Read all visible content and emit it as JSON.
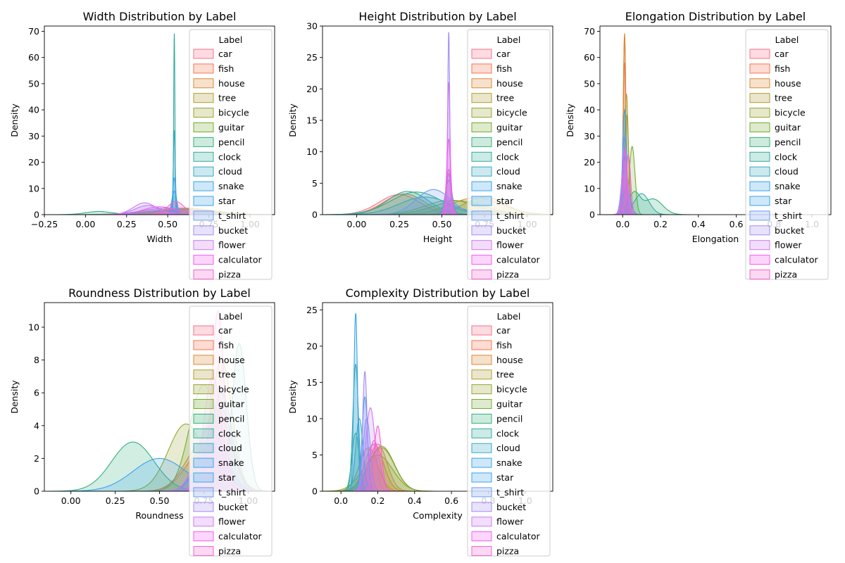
{
  "palette": {
    "car": "#f77189",
    "fish": "#f7754f",
    "house": "#dc8932",
    "tree": "#ae9d31",
    "bicycle": "#97a431",
    "guitar": "#77ab31",
    "pencil": "#33b07a",
    "clock": "#35ac9c",
    "cloud": "#38a9c5",
    "snake": "#3ba3ec",
    "star": "#3ba3ec",
    "t_shirt": "#6e9bf4",
    "bucket": "#a48cf4",
    "flower": "#cc7af4",
    "calculator": "#f45cf2",
    "pizza": "#f565cc"
  },
  "chart_data": [
    {
      "type": "area",
      "title": "Width Distribution by Label",
      "xlabel": "Width",
      "ylabel": "Density",
      "xlim": [
        -0.25,
        1.15
      ],
      "ylim": [
        0,
        72
      ],
      "xticks": [
        -0.25,
        0.0,
        0.25,
        0.5,
        0.75,
        1.0
      ],
      "xtick_labels": [
        "−0.25",
        "0.00",
        "0.25",
        "0.50",
        "0.75",
        "1.00"
      ],
      "yticks": [
        0,
        10,
        20,
        30,
        40,
        50,
        60,
        70
      ],
      "legend": {
        "title": "Label",
        "placement": "top-right"
      },
      "series": [
        {
          "name": "car",
          "peaks": [
            [
              0.62,
              0.16,
              2.2
            ]
          ]
        },
        {
          "name": "fish",
          "peaks": [
            [
              0.6,
              0.18,
              2.5
            ]
          ]
        },
        {
          "name": "house",
          "peaks": [
            [
              0.65,
              0.15,
              2.0
            ]
          ]
        },
        {
          "name": "tree",
          "peaks": [
            [
              0.6,
              0.15,
              2.2
            ]
          ]
        },
        {
          "name": "bicycle",
          "peaks": [
            [
              0.65,
              0.15,
              2.0
            ]
          ]
        },
        {
          "name": "guitar",
          "peaks": [
            [
              0.55,
              0.2,
              1.8
            ]
          ]
        },
        {
          "name": "pencil",
          "peaks": [
            [
              0.08,
              0.08,
              1.2
            ],
            [
              0.5,
              0.12,
              1.5
            ]
          ]
        },
        {
          "name": "clock",
          "peaks": [
            [
              0.54,
              0.004,
              69
            ]
          ]
        },
        {
          "name": "cloud",
          "peaks": [
            [
              0.54,
              0.006,
              32
            ]
          ]
        },
        {
          "name": "snake",
          "peaks": [
            [
              0.54,
              0.01,
              14
            ]
          ]
        },
        {
          "name": "star",
          "peaks": [
            [
              0.54,
              0.015,
              9
            ]
          ]
        },
        {
          "name": "t_shirt",
          "peaks": [
            [
              0.5,
              0.15,
              2.5
            ]
          ]
        },
        {
          "name": "bucket",
          "peaks": [
            [
              0.38,
              0.08,
              3.5
            ]
          ]
        },
        {
          "name": "flower",
          "peaks": [
            [
              0.36,
              0.07,
              4.5
            ]
          ]
        },
        {
          "name": "calculator",
          "peaks": [
            [
              0.45,
              0.1,
              3.0
            ]
          ]
        },
        {
          "name": "pizza",
          "peaks": [
            [
              0.55,
              0.05,
              5.0
            ]
          ]
        }
      ]
    },
    {
      "type": "area",
      "title": "Height Distribution by Label",
      "xlabel": "Height",
      "ylabel": "Density",
      "xlim": [
        -0.2,
        1.15
      ],
      "ylim": [
        0,
        30
      ],
      "xticks": [
        0.0,
        0.25,
        0.5,
        0.75,
        1.0
      ],
      "xtick_labels": [
        "0.00",
        "0.25",
        "0.50",
        "0.75",
        "1.00"
      ],
      "yticks": [
        0,
        5,
        10,
        15,
        20,
        25,
        30
      ],
      "legend": {
        "title": "Label",
        "placement": "top-right"
      },
      "series": [
        {
          "name": "car",
          "peaks": [
            [
              0.25,
              0.12,
              3.2
            ]
          ]
        },
        {
          "name": "fish",
          "peaks": [
            [
              0.28,
              0.12,
              3.3
            ]
          ]
        },
        {
          "name": "house",
          "peaks": [
            [
              0.7,
              0.15,
              2.7
            ]
          ]
        },
        {
          "name": "tree",
          "peaks": [
            [
              0.75,
              0.12,
              2.8
            ]
          ]
        },
        {
          "name": "bicycle",
          "peaks": [
            [
              0.55,
              0.15,
              2.3
            ]
          ]
        },
        {
          "name": "guitar",
          "peaks": [
            [
              0.6,
              0.15,
              2.2
            ]
          ]
        },
        {
          "name": "pencil",
          "peaks": [
            [
              0.35,
              0.15,
              3.6
            ]
          ]
        },
        {
          "name": "clock",
          "peaks": [
            [
              0.3,
              0.12,
              3.7
            ]
          ]
        },
        {
          "name": "cloud",
          "peaks": [
            [
              0.4,
              0.15,
              2.8
            ]
          ]
        },
        {
          "name": "snake",
          "peaks": [
            [
              0.54,
              0.015,
              6.5
            ]
          ]
        },
        {
          "name": "star",
          "peaks": [
            [
              0.54,
              0.02,
              5.5
            ]
          ]
        },
        {
          "name": "t_shirt",
          "peaks": [
            [
              0.45,
              0.1,
              4.0
            ]
          ]
        },
        {
          "name": "bucket",
          "peaks": [
            [
              0.54,
              0.006,
              29
            ]
          ]
        },
        {
          "name": "flower",
          "peaks": [
            [
              0.54,
              0.008,
              21
            ]
          ]
        },
        {
          "name": "calculator",
          "peaks": [
            [
              0.54,
              0.012,
              12
            ]
          ]
        },
        {
          "name": "pizza",
          "peaks": [
            [
              0.54,
              0.015,
              7.2
            ]
          ]
        }
      ]
    },
    {
      "type": "area",
      "title": "Elongation Distribution by Label",
      "xlabel": "Elongation",
      "ylabel": "Density",
      "xlim": [
        -0.12,
        1.1
      ],
      "ylim": [
        0,
        72
      ],
      "xticks": [
        0.0,
        0.2,
        0.4,
        0.6,
        0.8,
        1.0
      ],
      "xtick_labels": [
        "0.0",
        "0.2",
        "0.4",
        "0.6",
        "0.8",
        "1.0"
      ],
      "yticks": [
        0,
        10,
        20,
        30,
        40,
        50,
        60,
        70
      ],
      "legend": {
        "title": "Label",
        "placement": "top-right"
      },
      "series": [
        {
          "name": "car",
          "peaks": [
            [
              0.01,
              0.008,
              58
            ]
          ]
        },
        {
          "name": "fish",
          "peaks": [
            [
              0.01,
              0.007,
              68
            ]
          ]
        },
        {
          "name": "house",
          "peaks": [
            [
              0.01,
              0.007,
              69
            ]
          ]
        },
        {
          "name": "tree",
          "peaks": [
            [
              0.02,
              0.01,
              46
            ]
          ]
        },
        {
          "name": "bicycle",
          "peaks": [
            [
              0.02,
              0.012,
              38
            ]
          ]
        },
        {
          "name": "guitar",
          "peaks": [
            [
              0.05,
              0.015,
              26
            ]
          ]
        },
        {
          "name": "pencil",
          "peaks": [
            [
              0.06,
              0.03,
              8
            ],
            [
              0.16,
              0.05,
              6
            ]
          ]
        },
        {
          "name": "clock",
          "peaks": [
            [
              0.1,
              0.04,
              8
            ]
          ]
        },
        {
          "name": "cloud",
          "peaks": [
            [
              0.02,
              0.02,
              10
            ]
          ]
        },
        {
          "name": "snake",
          "peaks": [
            [
              0.01,
              0.01,
              40
            ]
          ]
        },
        {
          "name": "star",
          "peaks": [
            [
              0.01,
              0.015,
              22
            ]
          ]
        },
        {
          "name": "t_shirt",
          "peaks": [
            [
              0.01,
              0.012,
              30
            ]
          ]
        },
        {
          "name": "bucket",
          "peaks": [
            [
              0.01,
              0.015,
              20
            ]
          ]
        },
        {
          "name": "flower",
          "peaks": [
            [
              0.015,
              0.015,
              18
            ]
          ]
        },
        {
          "name": "calculator",
          "peaks": [
            [
              0.01,
              0.01,
              25
            ]
          ]
        },
        {
          "name": "pizza",
          "peaks": [
            [
              0.03,
              0.012,
              23
            ]
          ]
        }
      ]
    },
    {
      "type": "area",
      "title": "Roundness Distribution by Label",
      "xlabel": "Roundness",
      "ylabel": "Density",
      "xlim": [
        -0.15,
        1.15
      ],
      "ylim": [
        0,
        11.5
      ],
      "xticks": [
        0.0,
        0.25,
        0.5,
        0.75,
        1.0
      ],
      "xtick_labels": [
        "0.00",
        "0.25",
        "0.50",
        "0.75",
        "1.00"
      ],
      "yticks": [
        0,
        2,
        4,
        6,
        8,
        10
      ],
      "legend": {
        "title": "Label",
        "placement": "top-right"
      },
      "series": [
        {
          "name": "car",
          "peaks": [
            [
              0.75,
              0.1,
              2.5
            ]
          ]
        },
        {
          "name": "fish",
          "peaks": [
            [
              0.75,
              0.1,
              3.0
            ]
          ]
        },
        {
          "name": "house",
          "peaks": [
            [
              0.82,
              0.08,
              5.0
            ]
          ]
        },
        {
          "name": "tree",
          "peaks": [
            [
              0.85,
              0.06,
              8.0
            ]
          ]
        },
        {
          "name": "bicycle",
          "peaks": [
            [
              0.65,
              0.1,
              4.1
            ]
          ]
        },
        {
          "name": "guitar",
          "peaks": [
            [
              0.75,
              0.08,
              6.5
            ]
          ]
        },
        {
          "name": "pencil",
          "peaks": [
            [
              0.35,
              0.12,
              3.0
            ]
          ]
        },
        {
          "name": "clock",
          "peaks": [
            [
              0.95,
              0.04,
              9.0
            ]
          ]
        },
        {
          "name": "cloud",
          "peaks": [
            [
              0.85,
              0.06,
              6.0
            ]
          ]
        },
        {
          "name": "snake",
          "peaks": [
            [
              0.5,
              0.15,
              2.0
            ]
          ]
        },
        {
          "name": "star",
          "peaks": [
            [
              0.8,
              0.08,
              3.0
            ]
          ]
        },
        {
          "name": "t_shirt",
          "peaks": [
            [
              0.8,
              0.08,
              3.5
            ]
          ]
        },
        {
          "name": "bucket",
          "peaks": [
            [
              0.85,
              0.06,
              5.0
            ]
          ]
        },
        {
          "name": "flower",
          "peaks": [
            [
              0.78,
              0.07,
              4.0
            ]
          ]
        },
        {
          "name": "calculator",
          "peaks": [
            [
              0.8,
              0.05,
              7.0
            ]
          ]
        },
        {
          "name": "pizza",
          "peaks": [
            [
              0.83,
              0.035,
              11.0
            ]
          ]
        }
      ]
    },
    {
      "type": "area",
      "title": "Complexity Distribution by Label",
      "xlabel": "Complexity",
      "ylabel": "Density",
      "xlim": [
        -0.1,
        1.15
      ],
      "ylim": [
        0,
        26
      ],
      "xticks": [
        0.0,
        0.2,
        0.4,
        0.6,
        0.8,
        1.0
      ],
      "xtick_labels": [
        "0.0",
        "0.2",
        "0.4",
        "0.6",
        "0.8",
        "1.0"
      ],
      "yticks": [
        0,
        5,
        10,
        15,
        20,
        25
      ],
      "legend": {
        "title": "Label",
        "placement": "top-right"
      },
      "series": [
        {
          "name": "car",
          "peaks": [
            [
              0.2,
              0.05,
              6.5
            ]
          ]
        },
        {
          "name": "fish",
          "peaks": [
            [
              0.18,
              0.05,
              6.5
            ]
          ]
        },
        {
          "name": "house",
          "peaks": [
            [
              0.15,
              0.05,
              6.0
            ]
          ]
        },
        {
          "name": "tree",
          "peaks": [
            [
              0.22,
              0.07,
              6.0
            ]
          ]
        },
        {
          "name": "bicycle",
          "peaks": [
            [
              0.2,
              0.08,
              5.0
            ]
          ]
        },
        {
          "name": "guitar",
          "peaks": [
            [
              0.22,
              0.07,
              6.2
            ]
          ]
        },
        {
          "name": "pencil",
          "peaks": [
            [
              0.08,
              0.02,
              8.0
            ]
          ]
        },
        {
          "name": "clock",
          "peaks": [
            [
              0.08,
              0.015,
              17.5
            ]
          ]
        },
        {
          "name": "cloud",
          "peaks": [
            [
              0.1,
              0.02,
              10.0
            ]
          ]
        },
        {
          "name": "snake",
          "peaks": [
            [
              0.08,
              0.01,
              24.5
            ]
          ]
        },
        {
          "name": "star",
          "peaks": [
            [
              0.13,
              0.015,
              13.0
            ]
          ]
        },
        {
          "name": "t_shirt",
          "peaks": [
            [
              0.14,
              0.02,
              10.0
            ]
          ]
        },
        {
          "name": "bucket",
          "peaks": [
            [
              0.13,
              0.012,
              16.5
            ]
          ]
        },
        {
          "name": "flower",
          "peaks": [
            [
              0.16,
              0.025,
              11.5
            ]
          ]
        },
        {
          "name": "calculator",
          "peaks": [
            [
              0.18,
              0.03,
              7.0
            ]
          ]
        },
        {
          "name": "pizza",
          "peaks": [
            [
              0.2,
              0.02,
              9.0
            ]
          ]
        }
      ]
    }
  ]
}
